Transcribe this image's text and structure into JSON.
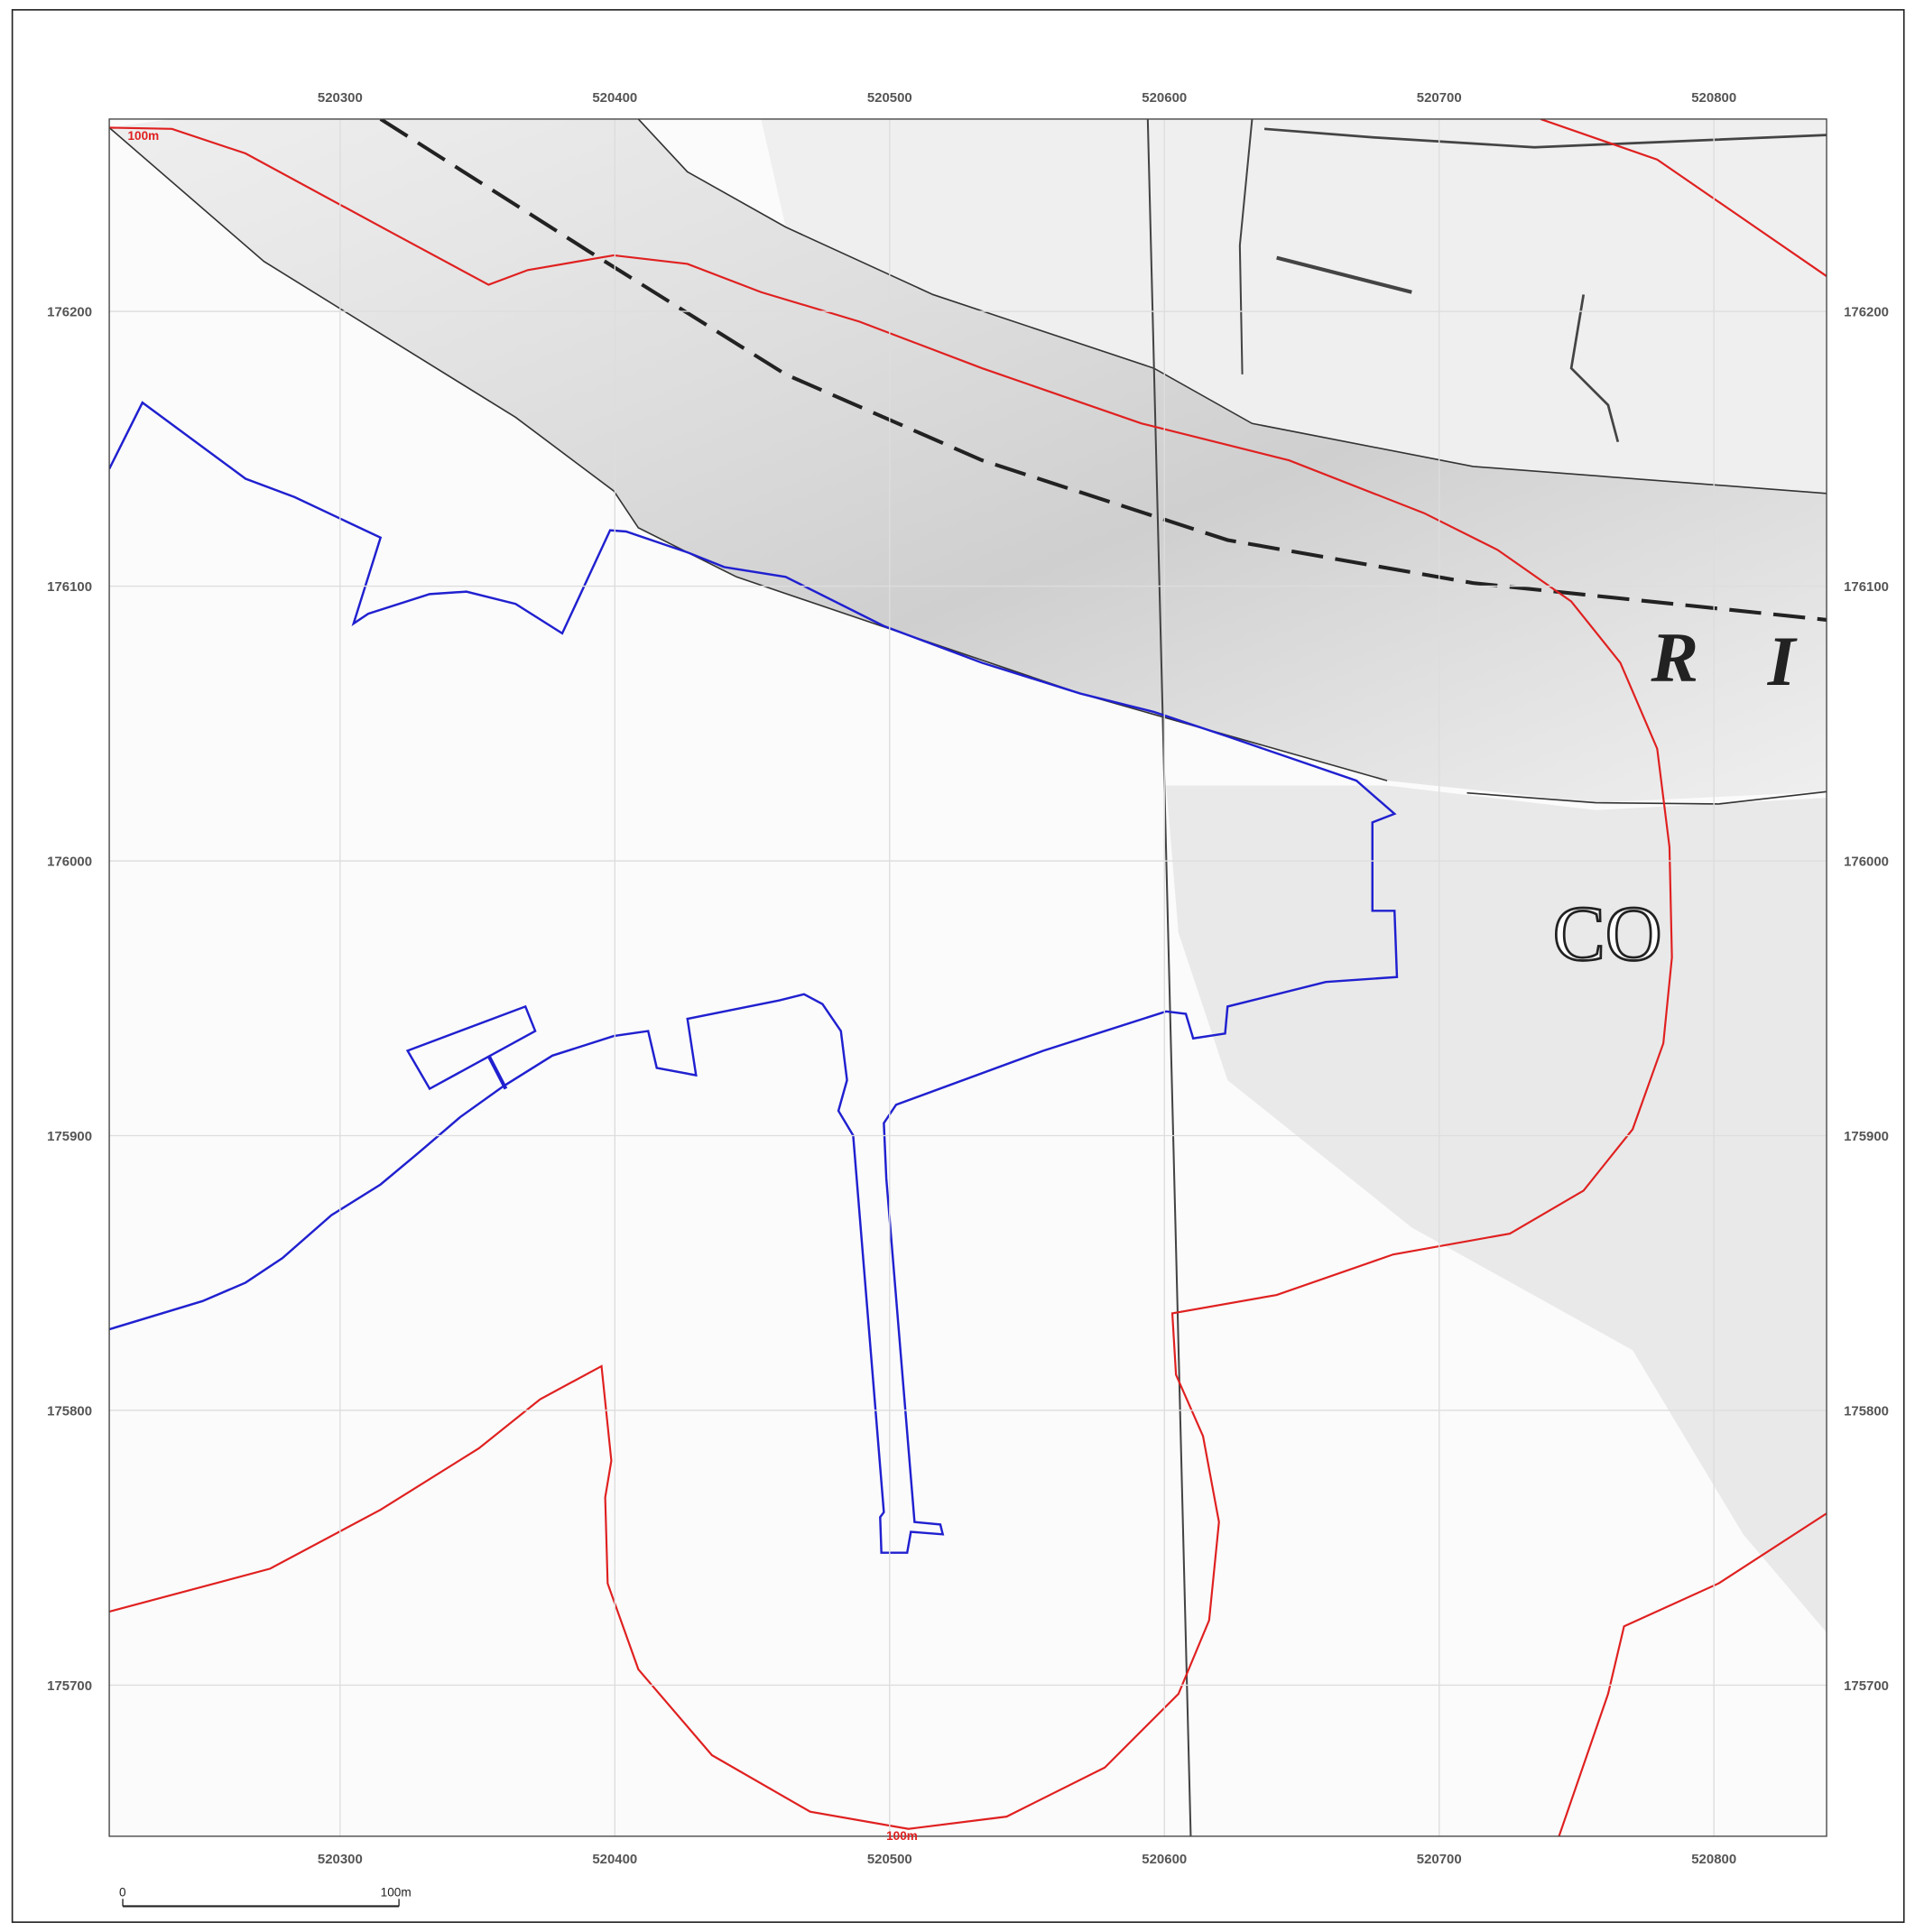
{
  "map": {
    "xlim": [
      520216,
      520841
    ],
    "ylim": [
      175645,
      176270
    ],
    "xticks": [
      520300,
      520400,
      520500,
      520600,
      520700,
      520800
    ],
    "yticks": [
      176200,
      176100,
      176000,
      175900,
      175800,
      175700
    ]
  },
  "labels": {
    "buffer_top": "100m",
    "buffer_bottom": "100m",
    "river": [
      "R",
      "I"
    ],
    "place": "CO"
  },
  "scale_bar": {
    "start": "0",
    "end": "100m"
  }
}
